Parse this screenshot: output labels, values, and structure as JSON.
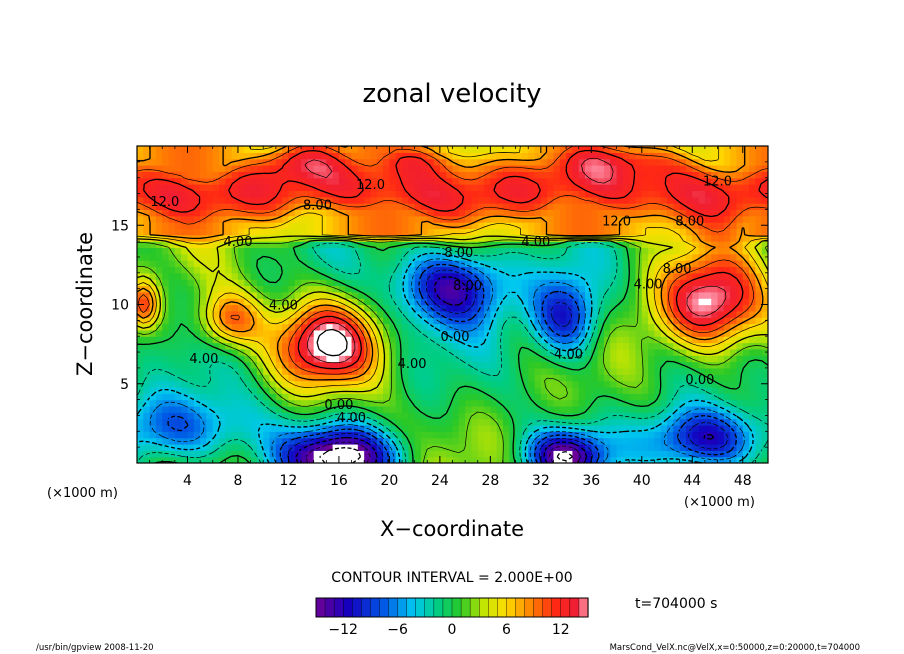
{
  "chart_data": {
    "type": "heatmap",
    "title": "zonal velocity",
    "xlabel": "X−coordinate",
    "ylabel": "Z−coordinate",
    "x_unit_label": "(×1000 m)",
    "x_unit_label_right": "(×1000 m)",
    "xlim": [
      0,
      50
    ],
    "ylim": [
      0,
      20
    ],
    "x_ticks": [
      4,
      8,
      12,
      16,
      20,
      24,
      28,
      32,
      36,
      40,
      44,
      48
    ],
    "y_ticks": [
      5,
      10,
      15
    ],
    "contour_interval_text": "CONTOUR INTERVAL = 2.000E+00",
    "time_text": "t=704000 s",
    "colorbar": {
      "range": [
        -15,
        15
      ],
      "ticks": [
        -12,
        -6,
        0,
        6,
        12
      ],
      "tick_labels": [
        "−12",
        "−6",
        "0",
        "6",
        "12"
      ]
    },
    "contour_labels": [
      {
        "text": "12.0",
        "x": 2.2,
        "y": 16.2
      },
      {
        "text": "12.0",
        "x": 18.5,
        "y": 17.3
      },
      {
        "text": "8.00",
        "x": 14.3,
        "y": 16.0
      },
      {
        "text": "4.00",
        "x": 8.0,
        "y": 13.7
      },
      {
        "text": "4.00",
        "x": 11.6,
        "y": 9.7
      },
      {
        "text": "4.00",
        "x": 5.3,
        "y": 6.3
      },
      {
        "text": "4.00",
        "x": 21.8,
        "y": 6.0
      },
      {
        "text": "0.00",
        "x": 25.2,
        "y": 7.7
      },
      {
        "text": "4.00",
        "x": 34.2,
        "y": 6.6
      },
      {
        "text": "0.00",
        "x": 44.6,
        "y": 5.0
      },
      {
        "text": "0.00",
        "x": 16.0,
        "y": 3.4
      },
      {
        "text": "4.00",
        "x": 17.0,
        "y": 2.6
      },
      {
        "text": "4.00",
        "x": 31.6,
        "y": 13.7
      },
      {
        "text": "8.00",
        "x": 25.5,
        "y": 13.0
      },
      {
        "text": "8.00",
        "x": 26.2,
        "y": 10.9
      },
      {
        "text": "12.0",
        "x": 38.0,
        "y": 15.0
      },
      {
        "text": "8.00",
        "x": 43.8,
        "y": 15.0
      },
      {
        "text": "12.0",
        "x": 46.0,
        "y": 17.5
      },
      {
        "text": "4.00",
        "x": 40.5,
        "y": 11.0
      },
      {
        "text": "8.00",
        "x": 42.8,
        "y": 12.0
      }
    ],
    "field_features": [
      {
        "kind": "band",
        "center_z": 17.2,
        "width": 2.4,
        "value": 11.5
      },
      {
        "kind": "blob",
        "x": 12.6,
        "z": 19.2,
        "rx": 3.5,
        "rz": 1.3,
        "value": 5.0
      },
      {
        "kind": "blob",
        "x": 22.5,
        "z": 19.4,
        "rx": 4.0,
        "rz": 1.2,
        "value": 6.0
      },
      {
        "kind": "blob",
        "x": 38.5,
        "z": 19.3,
        "rx": 6.0,
        "rz": 1.3,
        "value": 5.0
      },
      {
        "kind": "blob",
        "x": 15.0,
        "z": 7.5,
        "rx": 4.0,
        "rz": 2.6,
        "value": 14.0
      },
      {
        "kind": "blob",
        "x": 7.3,
        "z": 9.0,
        "rx": 2.6,
        "rz": 1.8,
        "value": 10.0
      },
      {
        "kind": "blob",
        "x": 45.5,
        "z": 10.0,
        "rx": 4.3,
        "rz": 3.0,
        "value": 16.0
      },
      {
        "kind": "blob",
        "x": 25.0,
        "z": 11.2,
        "rx": 4.3,
        "rz": 2.4,
        "value": -14.0
      },
      {
        "kind": "blob",
        "x": 34.0,
        "z": 9.2,
        "rx": 2.8,
        "rz": 2.6,
        "value": -12.0
      },
      {
        "kind": "blob",
        "x": 3.5,
        "z": 2.2,
        "rx": 6.0,
        "rz": 2.2,
        "value": -9.0
      },
      {
        "kind": "blob",
        "x": 16.0,
        "z": 0.4,
        "rx": 4.5,
        "rz": 1.8,
        "value": -16.0
      },
      {
        "kind": "blob",
        "x": 34.0,
        "z": 0.5,
        "rx": 3.0,
        "rz": 1.5,
        "value": -14.0
      },
      {
        "kind": "blob",
        "x": 45.0,
        "z": 1.5,
        "rx": 4.5,
        "rz": 2.0,
        "value": -14.0
      },
      {
        "kind": "blob",
        "x": 0.5,
        "z": 10.0,
        "rx": 1.2,
        "rz": 1.5,
        "value": 10.0
      }
    ]
  },
  "footer": {
    "left": "/usr/bin/gpview  2008-11-20",
    "right": "MarsCond_VelX.nc@VelX,x=0:50000,z=0:20000,t=704000"
  }
}
